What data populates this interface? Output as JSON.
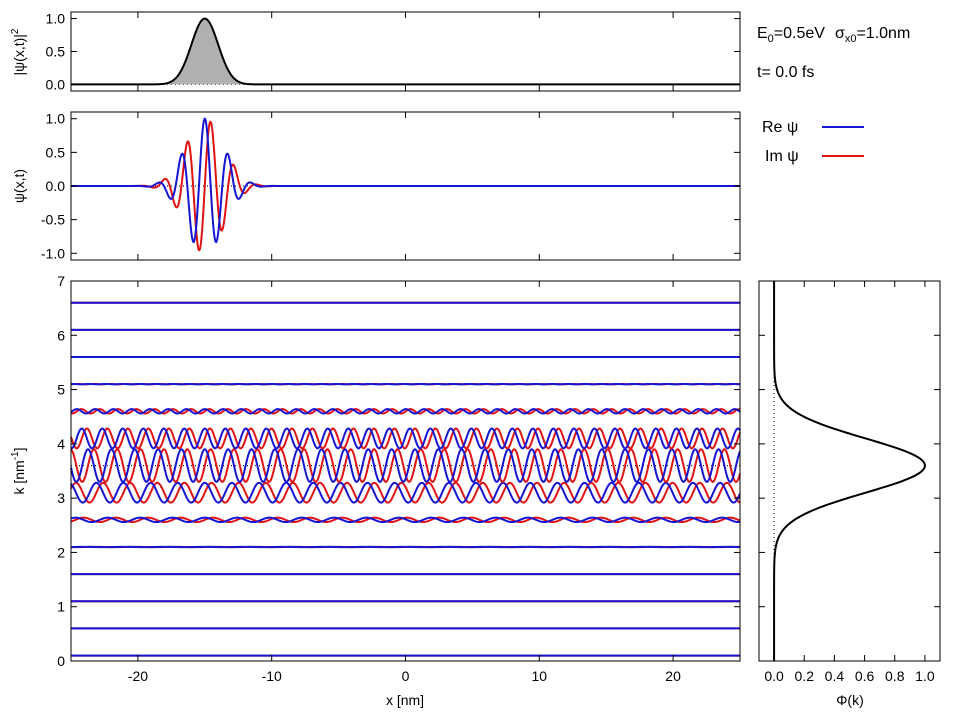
{
  "info": {
    "energy_label": "E",
    "energy_sub": "0",
    "energy_value": "=0.5eV",
    "sigma_symbol": "σ",
    "sigma_sub": "x0",
    "sigma_value": "=1.0nm",
    "time_text": "t=  0.0 fs"
  },
  "legend": {
    "re_label": "Re ψ",
    "im_label": "Im ψ"
  },
  "colors": {
    "re": "#1515d2",
    "im": "#e01414",
    "density_fill": "#b0b0b0",
    "axis": "#000000"
  },
  "chart_data": [
    {
      "type": "area",
      "name": "probability-density",
      "ylabel_text": "|ψ(x,t)|",
      "ylabel_sup": "2",
      "xlim": [
        -25,
        25
      ],
      "ylim": [
        -0.1,
        1.1
      ],
      "yticks": [
        "0.0",
        "0.5",
        "1.0"
      ],
      "yticks_values": [
        0.0,
        0.5,
        1.0
      ],
      "peak_x": -15,
      "peak_value": 1.0,
      "width_sigma": 1.0
    },
    {
      "type": "line",
      "name": "wavefunction",
      "ylabel_text": "ψ(x,t)",
      "xlim": [
        -25,
        25
      ],
      "ylim": [
        -1.1,
        1.1
      ],
      "yticks": [
        "-1.0",
        "-0.5",
        "0.0",
        "0.5",
        "1.0"
      ],
      "yticks_values": [
        -1.0,
        -0.5,
        0.0,
        0.5,
        1.0
      ],
      "center_x": -15,
      "k0": 3.6,
      "sigma": 1.0,
      "series": [
        {
          "name": "Re ψ",
          "color_key": "re"
        },
        {
          "name": "Im ψ",
          "color_key": "im"
        }
      ]
    },
    {
      "type": "line",
      "name": "k-components",
      "xlabel": "x [nm]",
      "ylabel_text": "k [nm",
      "ylabel_sup": "-1",
      "ylabel_end": "]",
      "xlim": [
        -25,
        25
      ],
      "ylim": [
        0,
        7
      ],
      "xticks": [
        "-20",
        "-10",
        "0",
        "10",
        "20"
      ],
      "xticks_values": [
        -20,
        -10,
        0,
        10,
        20
      ],
      "yticks": [
        "0",
        "1",
        "2",
        "3",
        "4",
        "5",
        "6",
        "7"
      ],
      "yticks_values": [
        0,
        1,
        2,
        3,
        4,
        5,
        6,
        7
      ],
      "k_values": [
        0.1,
        0.6,
        1.1,
        1.6,
        2.1,
        2.6,
        3.1,
        3.6,
        4.1,
        4.6,
        5.1,
        5.6,
        6.1,
        6.6
      ],
      "k0": 3.6,
      "amplitude_scale": 0.3
    },
    {
      "type": "line",
      "name": "momentum-distribution",
      "xlabel": "Φ(k)",
      "xlim": [
        -0.1,
        1.1
      ],
      "ylim": [
        0,
        7
      ],
      "xticks": [
        "0.0",
        "0.2",
        "0.4",
        "0.6",
        "0.8",
        "1.0"
      ],
      "xticks_values": [
        0.0,
        0.2,
        0.4,
        0.6,
        0.8,
        1.0
      ],
      "k0": 3.6,
      "sigma_k": 0.5,
      "peak_value": 1.0
    }
  ]
}
